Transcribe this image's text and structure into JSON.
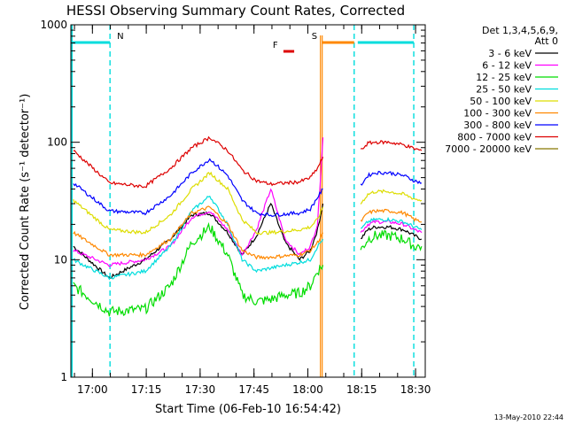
{
  "chart_data": {
    "type": "line",
    "title": "HESSI Observing Summary Count Rates, Corrected",
    "xlabel": "Start Time (06-Feb-10 16:54:42)",
    "ylabel": "Corrected Count Rate (s⁻¹ detector⁻¹)",
    "y_scale": "log",
    "ylim": [
      1,
      1000
    ],
    "xlim_minutes": [
      -0.7,
      98
    ],
    "x_tick_labels": [
      "17:00",
      "17:15",
      "17:30",
      "17:45",
      "18:00",
      "18:15",
      "18:30"
    ],
    "x_tick_minutes": [
      5.3,
      20.3,
      35.3,
      50.3,
      65.3,
      80.3,
      95.3
    ],
    "y_tick_labels": [
      "1",
      "10",
      "100",
      "1000"
    ],
    "y_tick_values": [
      1,
      10,
      100,
      1000
    ],
    "legend": {
      "header": [
        "Det 1,3,4,5,6,9,",
        "Att 0"
      ],
      "placement": "right-outside"
    },
    "series": [
      {
        "name": "3 - 6 keV",
        "color": "#000000",
        "x": [
          0,
          10,
          20,
          27,
          33,
          38,
          43,
          47,
          51,
          55,
          59,
          63,
          66,
          68,
          69.5,
          72,
          73,
          78,
          80,
          82,
          84,
          88,
          92,
          95,
          97
        ],
        "y": [
          13,
          7,
          10,
          15,
          24,
          25,
          17,
          11,
          16,
          30,
          14,
          10,
          12,
          18,
          30,
          null,
          null,
          null,
          15,
          18,
          19,
          19,
          18,
          16,
          15
        ]
      },
      {
        "name": "6 - 12 keV",
        "color": "#ff00ff",
        "x": [
          0,
          10,
          20,
          27,
          33,
          38,
          43,
          47,
          51,
          55,
          59,
          63,
          66,
          68,
          69.5,
          72,
          73,
          78,
          80,
          82,
          84,
          88,
          92,
          95,
          97
        ],
        "y": [
          12,
          9,
          10,
          13,
          23,
          26,
          18,
          11,
          18,
          40,
          15,
          11,
          13,
          20,
          110,
          null,
          null,
          null,
          17,
          20,
          21,
          21,
          20,
          18,
          17
        ]
      },
      {
        "name": "12 - 25 keV",
        "color": "#00dd00",
        "x": [
          0,
          10,
          20,
          27,
          33,
          38,
          43,
          47,
          51,
          55,
          59,
          63,
          66,
          68,
          69.5,
          72,
          73,
          78,
          80,
          82,
          84,
          88,
          92,
          95,
          97
        ],
        "y": [
          6,
          3.6,
          3.8,
          6,
          14,
          19,
          11,
          5,
          4.4,
          4.6,
          5,
          5.2,
          6,
          8,
          9,
          null,
          null,
          null,
          12,
          15,
          16,
          16,
          15,
          13,
          13
        ]
      },
      {
        "name": "25 - 50 keV",
        "color": "#00dddd",
        "x": [
          0,
          10,
          20,
          27,
          33,
          38,
          43,
          47,
          51,
          55,
          59,
          63,
          66,
          68,
          69.5,
          72,
          73,
          78,
          80,
          82,
          84,
          88,
          92,
          95,
          97
        ],
        "y": [
          10,
          7,
          8,
          13,
          26,
          35,
          20,
          10,
          8,
          8.5,
          9,
          9.5,
          10,
          13,
          15,
          null,
          null,
          null,
          18,
          21,
          22,
          22,
          21,
          19,
          18
        ]
      },
      {
        "name": "50 - 100 keV",
        "color": "#dddd00",
        "x": [
          0,
          10,
          20,
          27,
          33,
          38,
          43,
          47,
          51,
          55,
          59,
          63,
          66,
          68,
          69.5,
          72,
          73,
          78,
          80,
          82,
          84,
          88,
          92,
          95,
          97
        ],
        "y": [
          32,
          18,
          17,
          24,
          40,
          55,
          40,
          22,
          17,
          17,
          17.5,
          18,
          19,
          22,
          28,
          null,
          null,
          null,
          30,
          36,
          38,
          38,
          36,
          33,
          32
        ]
      },
      {
        "name": "100 - 300 keV",
        "color": "#ff8800",
        "x": [
          0,
          10,
          20,
          27,
          33,
          38,
          43,
          47,
          51,
          55,
          59,
          63,
          66,
          68,
          69.5,
          72,
          73,
          78,
          80,
          82,
          84,
          88,
          92,
          95,
          97
        ],
        "y": [
          17,
          11,
          11,
          15,
          25,
          28,
          20,
          12,
          10.5,
          10.5,
          10.8,
          11,
          12,
          14,
          17,
          null,
          null,
          null,
          21,
          25,
          26,
          26,
          25,
          22,
          21
        ]
      },
      {
        "name": "300 - 800 keV",
        "color": "#0000ff",
        "x": [
          0,
          10,
          20,
          27,
          33,
          38,
          43,
          47,
          51,
          55,
          59,
          63,
          66,
          68,
          69.5,
          72,
          73,
          78,
          80,
          82,
          84,
          88,
          92,
          95,
          97
        ],
        "y": [
          45,
          26,
          25,
          35,
          55,
          72,
          52,
          32,
          25,
          24,
          24.5,
          25,
          27,
          34,
          40,
          null,
          null,
          null,
          43,
          52,
          55,
          55,
          52,
          47,
          45
        ]
      },
      {
        "name": "800 - 7000 keV",
        "color": "#dd0000",
        "x": [
          0,
          10,
          20,
          27,
          33,
          38,
          43,
          47,
          51,
          55,
          59,
          63,
          66,
          68,
          69.5,
          72,
          73,
          78,
          80,
          82,
          84,
          88,
          92,
          95,
          97
        ],
        "y": [
          85,
          45,
          42,
          60,
          90,
          110,
          85,
          58,
          47,
          44,
          45,
          46,
          50,
          60,
          75,
          null,
          null,
          null,
          85,
          98,
          100,
          100,
          95,
          88,
          85
        ]
      },
      {
        "name": "7000 - 20000 keV",
        "color": "#887700",
        "x": [],
        "y": []
      }
    ],
    "annotations": [
      {
        "label": "N",
        "color": "#00dddd",
        "x_start": -0.7,
        "x_end": 10.2
      },
      {
        "label": "F",
        "color": "#dd0000",
        "x_start": 58.5,
        "x_end": 61.5
      },
      {
        "label": "S",
        "color": "#ff8800",
        "x_start": 69.3,
        "x_end": 78.2
      },
      {
        "label": "",
        "color": "#00dddd",
        "x_start": 79.2,
        "x_end": 94.8
      }
    ],
    "dashed_markers_minutes": [
      10.2,
      78.2,
      94.8
    ],
    "solid_markers_minutes": [
      -0.7
    ],
    "orange_marker_minutes": [
      68.8,
      69.3
    ],
    "grid": false
  },
  "footer": {
    "timestamp": "13-May-2010 22:44"
  }
}
